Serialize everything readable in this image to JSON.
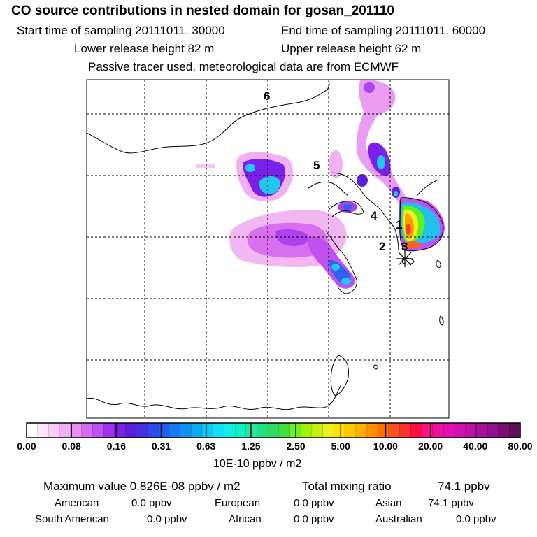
{
  "header": {
    "title": "CO  source contributions in nested domain for gosan_201110",
    "start_label": "Start time of sampling 20111011. 30000",
    "end_label": "End time of sampling 20111011. 60000",
    "lower_label": "Lower release height   82 m",
    "upper_label": "Upper release height   62 m",
    "tracer_label": "Passive tracer used, meteorological data are from ECMWF"
  },
  "map": {
    "region_labels": [
      "1",
      "2",
      "3",
      "4",
      "5",
      "6"
    ],
    "receptor_marker": "asterisk-icon"
  },
  "colorbar": {
    "tick_labels": [
      "0.00",
      "0.08",
      "0.16",
      "0.31",
      "0.63",
      "1.25",
      "2.50",
      "5.00",
      "10.00",
      "20.00",
      "40.00",
      "80.00"
    ],
    "unit_label": "10E-10 ppbv / m2",
    "colors": [
      "#ffffff",
      "#fde6fd",
      "#f9ccf9",
      "#f4b0f4",
      "#e690f0",
      "#d46ef0",
      "#c050f0",
      "#a030f0",
      "#7a20e8",
      "#5a20d8",
      "#4830e0",
      "#3048f0",
      "#2060f0",
      "#1878f0",
      "#1090f0",
      "#10a8f0",
      "#10c8f0",
      "#10e0f0",
      "#10f0e0",
      "#10f0c0",
      "#20e8a0",
      "#20e080",
      "#30d860",
      "#40e040",
      "#70f020",
      "#a0f010",
      "#c8f010",
      "#e8f020",
      "#ffe000",
      "#ffc800",
      "#ffb000",
      "#ff9000",
      "#ff7000",
      "#ff5020",
      "#ff3030",
      "#ff1040",
      "#ff1080",
      "#f010a0",
      "#e010b0",
      "#d010b0",
      "#c010a8",
      "#a81098",
      "#901088",
      "#781070",
      "#601058"
    ]
  },
  "stats": {
    "max_label": "Maximum value  0.826E-08 ppbv / m2",
    "total_label": "Total mixing ratio",
    "total_value": "74.1 ppbv",
    "american_label": "American",
    "american_value": "0.0 ppbv",
    "european_label": "European",
    "european_value": "0.0 ppbv",
    "asian_label": "Asian",
    "asian_value": "74.1 ppbv",
    "south_american_label": "South American",
    "south_american_value": "0.0 ppbv",
    "african_label": "African",
    "african_value": "0.0 ppbv",
    "australian_label": "Australian",
    "australian_value": "0.0 ppbv"
  }
}
